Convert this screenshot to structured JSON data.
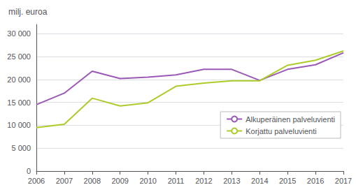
{
  "chart_data": {
    "type": "line",
    "ylabel": "milj. euroa",
    "x": [
      2006,
      2007,
      2008,
      2009,
      2010,
      2011,
      2012,
      2013,
      2014,
      2015,
      2016,
      2017
    ],
    "series": [
      {
        "name": "Alkuperäinen palveluvienti",
        "color": "#9b59b6",
        "values": [
          14500,
          17000,
          21800,
          20200,
          20500,
          21000,
          22200,
          22200,
          19800,
          22200,
          23200,
          25800
        ]
      },
      {
        "name": "Korjattu palveluvienti",
        "color": "#adcc2a",
        "values": [
          9500,
          10200,
          15900,
          14200,
          14900,
          18500,
          19200,
          19700,
          19700,
          23100,
          24200,
          26200
        ]
      }
    ],
    "xlim": [
      2006,
      2017
    ],
    "xticks": [
      2006,
      2007,
      2008,
      2009,
      2010,
      2011,
      2012,
      2013,
      2014,
      2015,
      2016,
      2017
    ],
    "ylim": [
      0,
      32000
    ],
    "yticks": [
      0,
      {
        "value": 5000,
        "label": "5 000"
      },
      {
        "value": 10000,
        "label": "10 000"
      },
      {
        "value": 15000,
        "label": "15 000"
      },
      {
        "value": 20000,
        "label": "20 000"
      },
      {
        "value": 25000,
        "label": "25 000"
      },
      {
        "value": 30000,
        "label": "30 000"
      }
    ],
    "grid": true,
    "legend": "right"
  }
}
